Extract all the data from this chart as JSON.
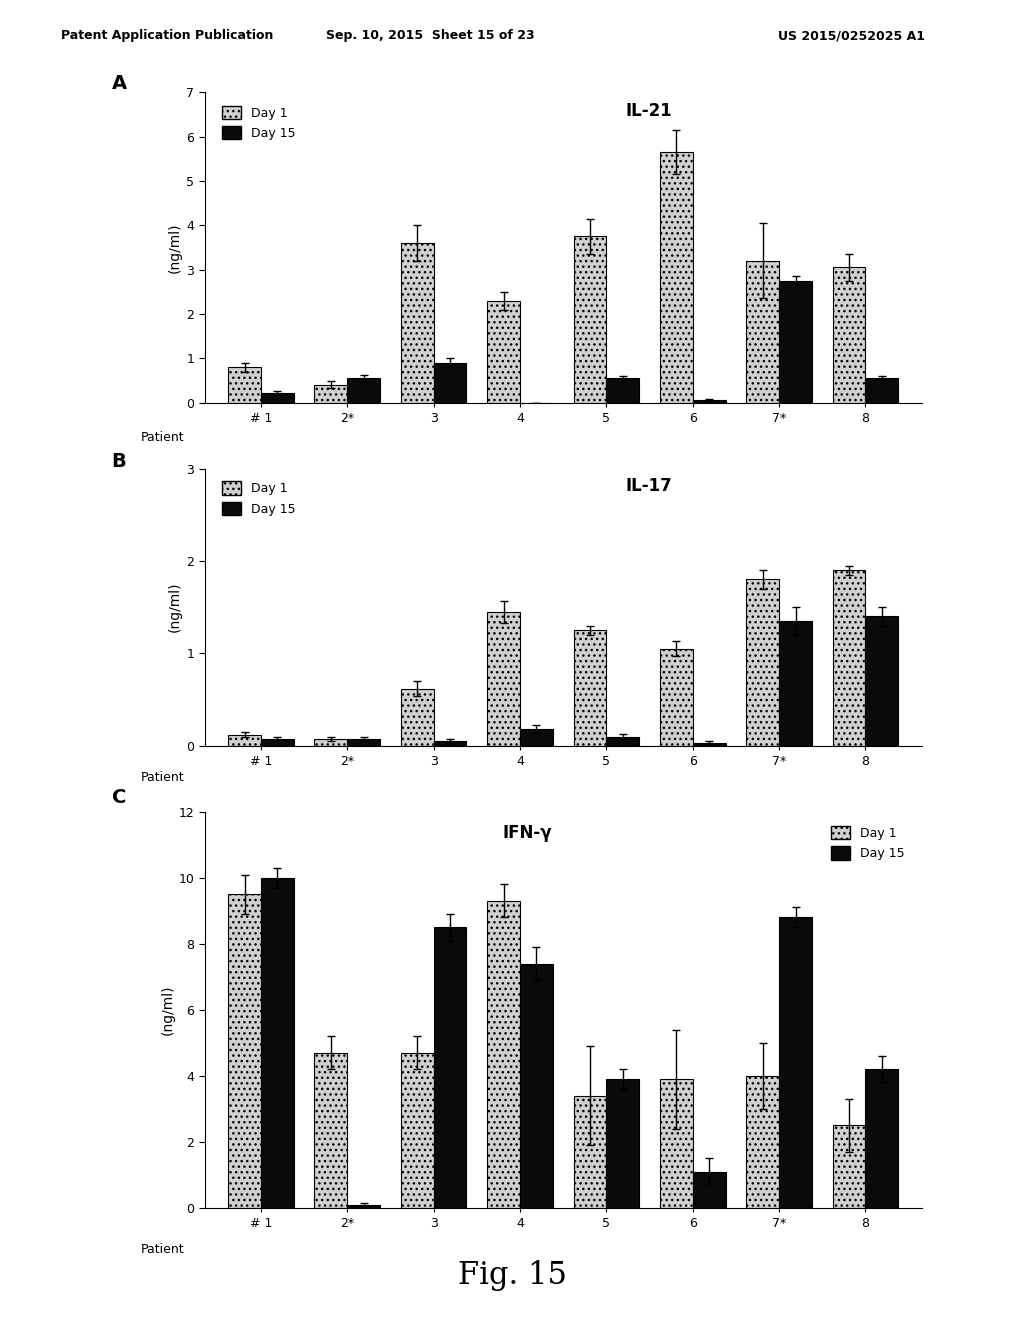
{
  "header_left": "Patent Application Publication",
  "header_mid": "Sep. 10, 2015  Sheet 15 of 23",
  "header_right": "US 2015/0252025 A1",
  "footer": "Fig. 15",
  "patients": [
    "# 1",
    "2*",
    "3",
    "4",
    "5",
    "6",
    "7*",
    "8"
  ],
  "chartA": {
    "title": "IL-21",
    "label": "A",
    "ylabel": "(ng/ml)",
    "ylim": [
      0,
      7
    ],
    "yticks": [
      0,
      1,
      2,
      3,
      4,
      5,
      6,
      7
    ],
    "day1": [
      0.8,
      0.4,
      3.6,
      2.3,
      3.75,
      5.65,
      3.2,
      3.05
    ],
    "day15": [
      0.22,
      0.55,
      0.9,
      0.0,
      0.55,
      0.05,
      2.75,
      0.55
    ],
    "day1_err": [
      0.1,
      0.08,
      0.4,
      0.2,
      0.4,
      0.5,
      0.85,
      0.3
    ],
    "day15_err": [
      0.04,
      0.08,
      0.1,
      0.0,
      0.05,
      0.02,
      0.1,
      0.04
    ]
  },
  "chartB": {
    "title": "IL-17",
    "label": "B",
    "ylabel": "(ng/ml)",
    "ylim": [
      0,
      3
    ],
    "yticks": [
      0,
      1,
      2,
      3
    ],
    "day1": [
      0.12,
      0.07,
      0.62,
      1.45,
      1.25,
      1.05,
      1.8,
      1.9
    ],
    "day15": [
      0.07,
      0.07,
      0.05,
      0.18,
      0.1,
      0.03,
      1.35,
      1.4
    ],
    "day1_err": [
      0.03,
      0.02,
      0.08,
      0.12,
      0.05,
      0.08,
      0.1,
      0.05
    ],
    "day15_err": [
      0.02,
      0.02,
      0.02,
      0.04,
      0.03,
      0.02,
      0.15,
      0.1
    ]
  },
  "chartC": {
    "title": "IFN-γ",
    "label": "C",
    "ylabel": "(ng/ml)",
    "ylim": [
      0,
      12
    ],
    "yticks": [
      0,
      2,
      4,
      6,
      8,
      10,
      12
    ],
    "day1": [
      9.5,
      4.7,
      4.7,
      9.3,
      3.4,
      3.9,
      4.0,
      2.5
    ],
    "day15": [
      10.0,
      0.1,
      8.5,
      7.4,
      3.9,
      1.1,
      8.8,
      4.2
    ],
    "day1_err": [
      0.6,
      0.5,
      0.5,
      0.5,
      1.5,
      1.5,
      1.0,
      0.8
    ],
    "day15_err": [
      0.3,
      0.05,
      0.4,
      0.5,
      0.3,
      0.4,
      0.3,
      0.4
    ]
  },
  "day1_color": "#d0d0d0",
  "day15_color": "#0a0a0a",
  "bar_width": 0.38,
  "background_color": "#ffffff"
}
